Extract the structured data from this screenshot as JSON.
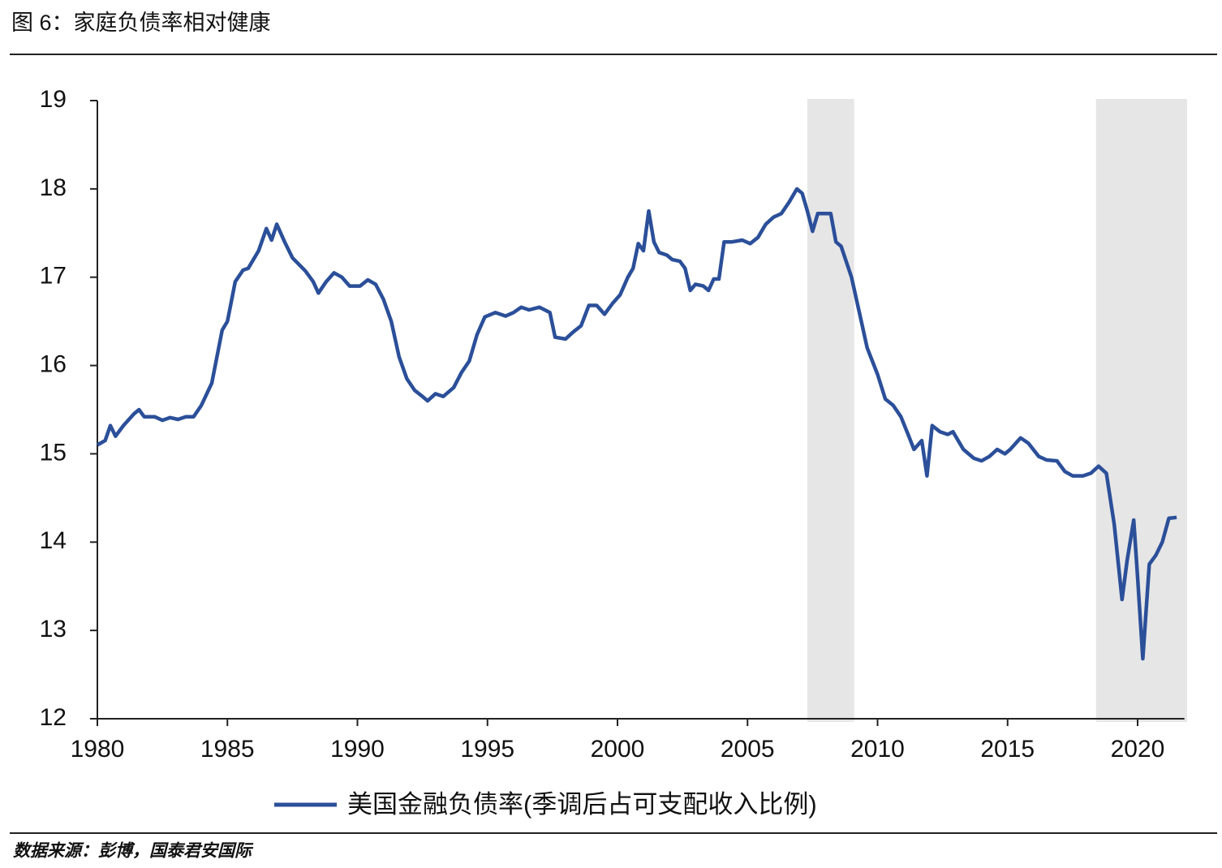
{
  "chart_data": {
    "type": "line",
    "title": "图 6：家庭负债率相对健康",
    "source": "数据来源：彭博，国泰君安国际",
    "x": [
      1980.0,
      1980.3,
      1980.5,
      1980.7,
      1981.0,
      1981.4,
      1981.6,
      1981.8,
      1982.2,
      1982.5,
      1982.8,
      1983.1,
      1983.4,
      1983.7,
      1984.0,
      1984.4,
      1984.6,
      1984.8,
      1985.0,
      1985.3,
      1985.6,
      1985.8,
      1986.2,
      1986.5,
      1986.7,
      1986.9,
      1987.2,
      1987.5,
      1988.0,
      1988.3,
      1988.5,
      1988.8,
      1989.1,
      1989.4,
      1989.7,
      1990.1,
      1990.4,
      1990.7,
      1991.0,
      1991.3,
      1991.6,
      1991.9,
      1992.2,
      1992.5,
      1992.7,
      1993.0,
      1993.3,
      1993.7,
      1994.0,
      1994.3,
      1994.6,
      1994.9,
      1995.3,
      1995.7,
      1996.0,
      1996.3,
      1996.6,
      1997.0,
      1997.4,
      1997.6,
      1998.0,
      1998.3,
      1998.6,
      1998.9,
      1999.2,
      1999.5,
      1999.8,
      2000.1,
      2000.4,
      2000.6,
      2000.8,
      2001.0,
      2001.2,
      2001.4,
      2001.6,
      2001.9,
      2002.1,
      2002.4,
      2002.6,
      2002.8,
      2003.0,
      2003.3,
      2003.5,
      2003.7,
      2003.9,
      2004.1,
      2004.4,
      2004.8,
      2005.1,
      2005.4,
      2005.7,
      2006.0,
      2006.3,
      2006.6,
      2006.9,
      2007.1,
      2007.3,
      2007.5,
      2007.7,
      2008.0,
      2008.2,
      2008.4,
      2008.6,
      2009.0,
      2009.3,
      2009.6,
      2010.0,
      2010.3,
      2010.6,
      2010.9,
      2011.2,
      2011.4,
      2011.7,
      2011.9,
      2012.1,
      2012.4,
      2012.7,
      2012.9,
      2013.3,
      2013.7,
      2014.0,
      2014.3,
      2014.6,
      2014.9,
      2015.1,
      2015.5,
      2015.8,
      2016.2,
      2016.5,
      2016.9,
      2017.2,
      2017.5,
      2017.9,
      2018.2,
      2018.5,
      2018.8,
      2019.1,
      2019.4,
      2019.6,
      2019.85,
      2020.0,
      2020.2,
      2020.45,
      2020.7,
      2020.95,
      2021.2,
      2021.5
    ],
    "series": [
      {
        "name": "美国金融负债率(季调后占可支配收入比例)",
        "color": "#2b4f99",
        "values": [
          15.1,
          15.15,
          15.32,
          15.2,
          15.32,
          15.45,
          15.5,
          15.42,
          15.42,
          15.38,
          15.41,
          15.39,
          15.42,
          15.42,
          15.55,
          15.8,
          16.1,
          16.4,
          16.5,
          16.95,
          17.08,
          17.1,
          17.3,
          17.55,
          17.42,
          17.6,
          17.4,
          17.22,
          17.07,
          16.95,
          16.82,
          16.95,
          17.05,
          17.0,
          16.9,
          16.9,
          16.97,
          16.92,
          16.75,
          16.5,
          16.1,
          15.85,
          15.72,
          15.65,
          15.6,
          15.68,
          15.65,
          15.75,
          15.92,
          16.05,
          16.35,
          16.55,
          16.6,
          16.56,
          16.6,
          16.66,
          16.63,
          16.66,
          16.6,
          16.32,
          16.3,
          16.38,
          16.45,
          16.68,
          16.68,
          16.58,
          16.7,
          16.8,
          17.0,
          17.1,
          17.38,
          17.3,
          17.75,
          17.4,
          17.28,
          17.25,
          17.2,
          17.18,
          17.1,
          16.85,
          16.92,
          16.9,
          16.85,
          16.98,
          16.98,
          17.4,
          17.4,
          17.42,
          17.38,
          17.45,
          17.6,
          17.68,
          17.72,
          17.85,
          18.0,
          17.95,
          17.75,
          17.52,
          17.72,
          17.72,
          17.72,
          17.4,
          17.35,
          17.0,
          16.6,
          16.2,
          15.9,
          15.62,
          15.55,
          15.42,
          15.2,
          15.05,
          15.15,
          14.75,
          15.32,
          15.25,
          15.22,
          15.25,
          15.05,
          14.95,
          14.92,
          14.97,
          15.05,
          15.0,
          15.05,
          15.18,
          15.12,
          14.97,
          14.93,
          14.92,
          14.8,
          14.75,
          14.75,
          14.78,
          14.86,
          14.78,
          14.2,
          13.35,
          13.8,
          14.25,
          13.6,
          12.68,
          13.75,
          13.85,
          14.0,
          14.27,
          14.28
        ]
      }
    ],
    "shaded": [
      [
        2007.3,
        2009.1
      ],
      [
        2018.4,
        2021.9
      ]
    ],
    "shade_color": "#e6e6e6",
    "xlim": [
      1980,
      2021.8
    ],
    "xticks": [
      1980,
      1985,
      1990,
      1995,
      2000,
      2005,
      2010,
      2015,
      2020
    ],
    "ylim": [
      12,
      19
    ],
    "yticks": [
      12,
      13,
      14,
      15,
      16,
      17,
      18,
      19
    ]
  }
}
